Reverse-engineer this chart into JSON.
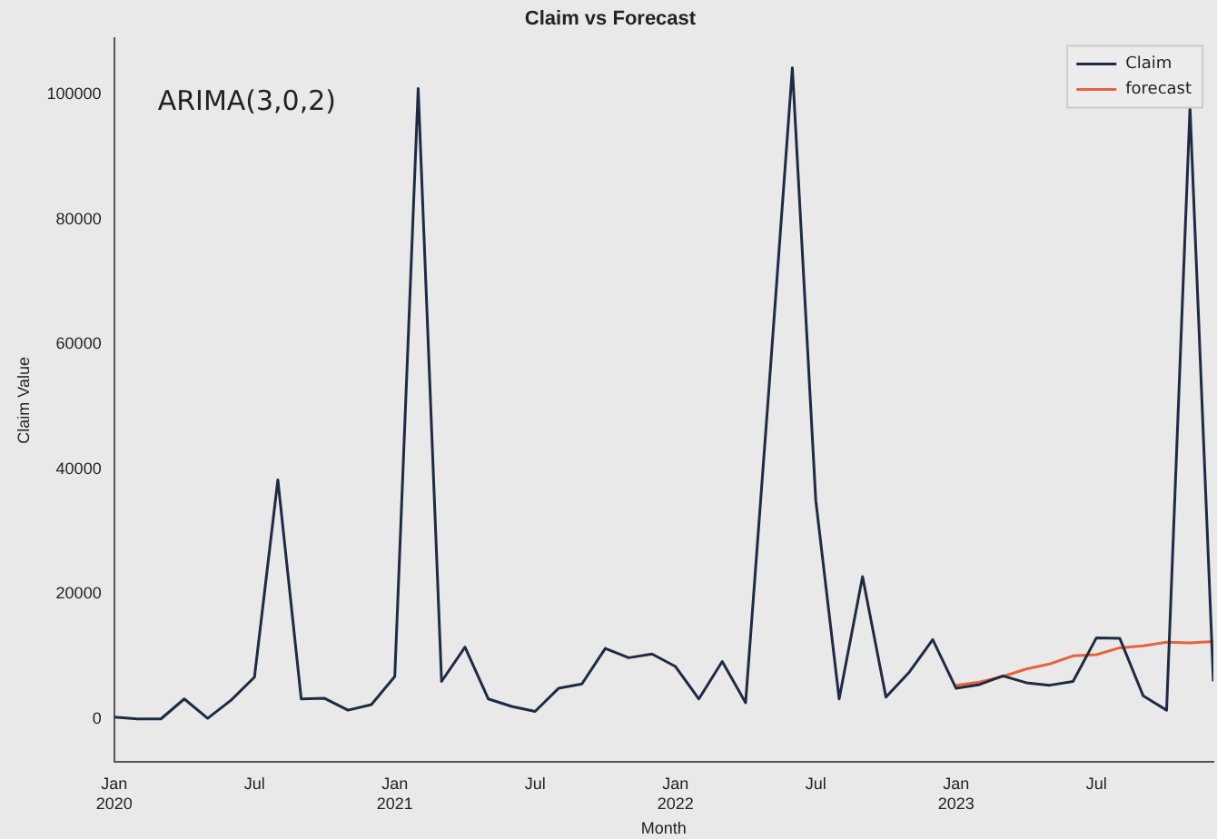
{
  "chart_data": {
    "type": "line",
    "title": "Claim vs Forecast",
    "xlabel": "Month",
    "ylabel": "Claim Value",
    "annotations": [
      "ARIMA(3,0,2)"
    ],
    "series": [
      {
        "name": "Claim",
        "color": "#1f2a44",
        "x": [
          "2020-01",
          "2020-02",
          "2020-03",
          "2020-04",
          "2020-05",
          "2020-06",
          "2020-07",
          "2020-08",
          "2020-09",
          "2020-10",
          "2020-11",
          "2020-12",
          "2021-01",
          "2021-02",
          "2021-03",
          "2021-04",
          "2021-05",
          "2021-06",
          "2021-07",
          "2021-08",
          "2021-09",
          "2021-10",
          "2021-11",
          "2021-12",
          "2022-01",
          "2022-02",
          "2022-03",
          "2022-04",
          "2022-05",
          "2022-06",
          "2022-07",
          "2022-08",
          "2022-09",
          "2022-10",
          "2022-11",
          "2022-12",
          "2023-01",
          "2023-02",
          "2023-03",
          "2023-04",
          "2023-05",
          "2023-06",
          "2023-07",
          "2023-08",
          "2023-09",
          "2023-10",
          "2023-11",
          "2023-12"
        ],
        "values": [
          300,
          0,
          0,
          3200,
          100,
          3000,
          6700,
          38300,
          3200,
          3300,
          1400,
          2300,
          6800,
          101000,
          6000,
          11500,
          3200,
          2000,
          1200,
          4900,
          5600,
          11300,
          9800,
          10400,
          8400,
          3200,
          9200,
          2600,
          53000,
          104300,
          35000,
          3200,
          22800,
          3500,
          7500,
          12700,
          4900,
          5500,
          6900,
          5800,
          5400,
          6000,
          13000,
          12900,
          3700,
          1400,
          98000,
          6000
        ]
      },
      {
        "name": "forecast",
        "color": "#e8623a",
        "x": [
          "2023-01",
          "2023-02",
          "2023-03",
          "2023-04",
          "2023-05",
          "2023-06",
          "2023-07",
          "2023-08",
          "2023-09",
          "2023-10",
          "2023-11",
          "2023-12"
        ],
        "values": [
          5400,
          5900,
          6800,
          8000,
          8800,
          10100,
          10300,
          11400,
          11700,
          12300,
          12200,
          12400
        ]
      }
    ],
    "xlim": [
      "2020-01",
      "2023-12"
    ],
    "xticks": [
      {
        "value": "2020-01",
        "label": "Jan 2020"
      },
      {
        "value": "2020-07",
        "label": "Jul"
      },
      {
        "value": "2021-01",
        "label": "Jan 2021"
      },
      {
        "value": "2021-07",
        "label": "Jul"
      },
      {
        "value": "2022-01",
        "label": "Jan 2022"
      },
      {
        "value": "2022-07",
        "label": "Jul"
      },
      {
        "value": "2023-01",
        "label": "Jan 2023"
      },
      {
        "value": "2023-07",
        "label": "Jul"
      }
    ],
    "ylim": [
      -6900,
      109000
    ],
    "yticks": [
      0,
      20000,
      40000,
      60000,
      80000,
      100000
    ],
    "grid": false,
    "legend": "top right",
    "marker": "none",
    "line_style": "solid"
  }
}
